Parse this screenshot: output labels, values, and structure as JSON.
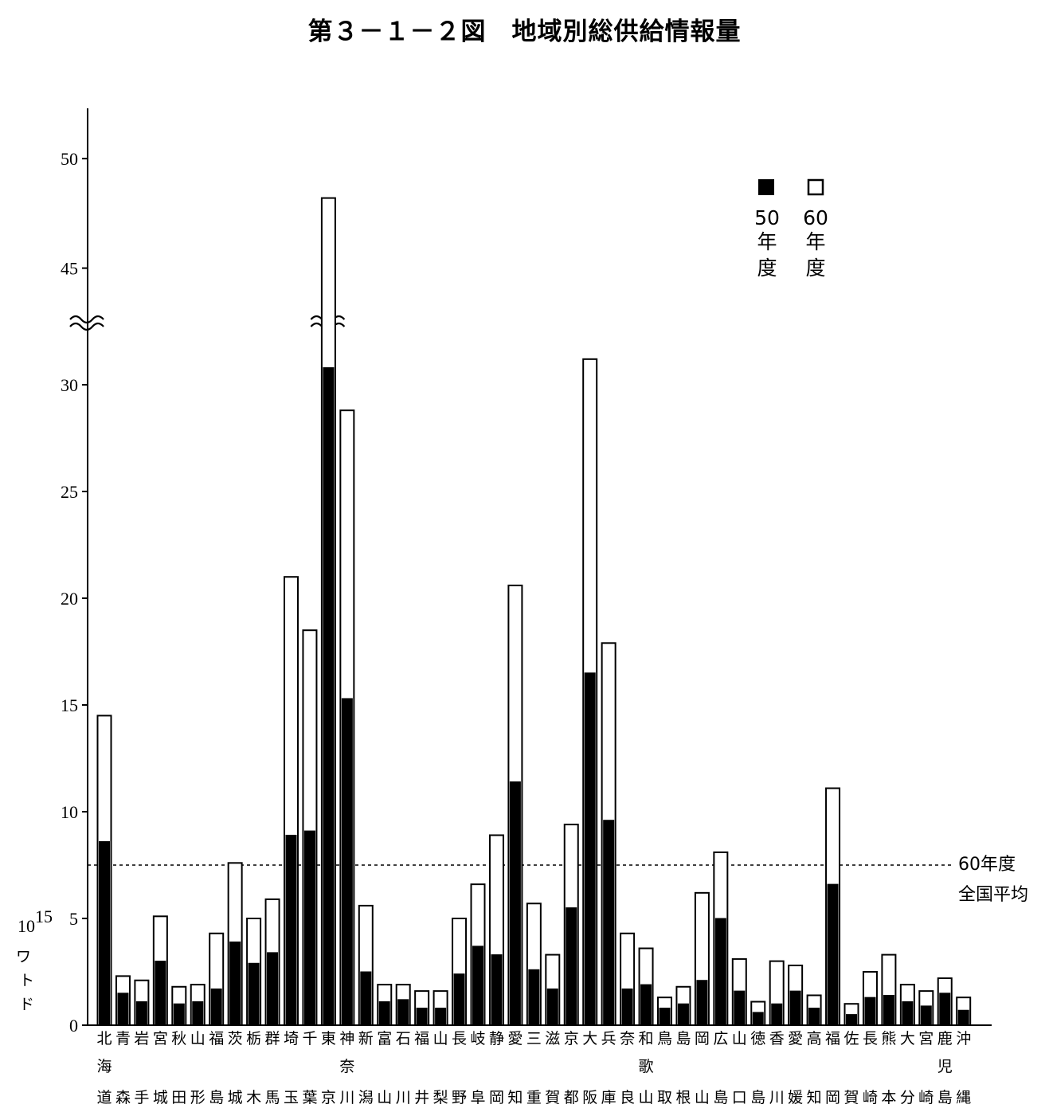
{
  "title": "第３－１－２図　地域別総供給情報量",
  "chart_data": {
    "type": "bar",
    "stacked_overlay": true,
    "unit_label": [
      "10",
      "15",
      "ワ",
      "ト",
      "ド"
    ],
    "y_ticks": [
      "0",
      "5",
      "10",
      "15",
      "20",
      "25",
      "30",
      "45",
      "50"
    ],
    "axis_break": {
      "from": 33,
      "to": 43
    },
    "ylim": [
      0,
      52
    ],
    "categories": [
      [
        "北",
        "海",
        "道"
      ],
      [
        "青",
        "",
        "森"
      ],
      [
        "岩",
        "",
        "手"
      ],
      [
        "宮",
        "",
        "城"
      ],
      [
        "秋",
        "",
        "田"
      ],
      [
        "山",
        "",
        "形"
      ],
      [
        "福",
        "",
        "島"
      ],
      [
        "茨",
        "",
        "城"
      ],
      [
        "栃",
        "",
        "木"
      ],
      [
        "群",
        "",
        "馬"
      ],
      [
        "埼",
        "",
        "玉"
      ],
      [
        "千",
        "",
        "葉"
      ],
      [
        "東",
        "",
        "京"
      ],
      [
        "神",
        "奈",
        "川"
      ],
      [
        "新",
        "",
        "潟"
      ],
      [
        "富",
        "",
        "山"
      ],
      [
        "石",
        "",
        "川"
      ],
      [
        "福",
        "",
        "井"
      ],
      [
        "山",
        "",
        "梨"
      ],
      [
        "長",
        "",
        "野"
      ],
      [
        "岐",
        "",
        "阜"
      ],
      [
        "静",
        "",
        "岡"
      ],
      [
        "愛",
        "",
        "知"
      ],
      [
        "三",
        "",
        "重"
      ],
      [
        "滋",
        "",
        "賀"
      ],
      [
        "京",
        "",
        "都"
      ],
      [
        "大",
        "",
        "阪"
      ],
      [
        "兵",
        "",
        "庫"
      ],
      [
        "奈",
        "",
        "良"
      ],
      [
        "和",
        "歌",
        "山"
      ],
      [
        "鳥",
        "",
        "取"
      ],
      [
        "島",
        "",
        "根"
      ],
      [
        "岡",
        "",
        "山"
      ],
      [
        "広",
        "",
        "島"
      ],
      [
        "山",
        "",
        "口"
      ],
      [
        "徳",
        "",
        "島"
      ],
      [
        "香",
        "",
        "川"
      ],
      [
        "愛",
        "",
        "媛"
      ],
      [
        "高",
        "",
        "知"
      ],
      [
        "福",
        "",
        "岡"
      ],
      [
        "佐",
        "",
        "賀"
      ],
      [
        "長",
        "",
        "崎"
      ],
      [
        "熊",
        "",
        "本"
      ],
      [
        "大",
        "",
        "分"
      ],
      [
        "宮",
        "",
        "崎"
      ],
      [
        "鹿",
        "児",
        "島"
      ],
      [
        "沖",
        "",
        "縄"
      ]
    ],
    "series": [
      {
        "name": "50年度",
        "color": "#000000",
        "values": [
          8.6,
          1.5,
          1.1,
          3.0,
          1.0,
          1.1,
          1.7,
          3.9,
          2.9,
          3.4,
          8.9,
          9.1,
          30.8,
          15.3,
          2.5,
          1.1,
          1.2,
          0.8,
          0.8,
          2.4,
          3.7,
          3.3,
          11.4,
          2.6,
          1.7,
          5.5,
          16.5,
          9.6,
          1.7,
          1.9,
          0.8,
          1.0,
          2.1,
          5.0,
          1.6,
          0.6,
          1.0,
          1.6,
          0.8,
          6.6,
          0.5,
          1.3,
          1.4,
          1.1,
          0.9,
          1.5,
          0.7
        ]
      },
      {
        "name": "60年度",
        "color": "#ffffff",
        "values": [
          14.5,
          2.3,
          2.1,
          5.1,
          1.8,
          1.9,
          4.3,
          7.6,
          5.0,
          5.9,
          21.0,
          18.5,
          48.2,
          28.8,
          5.6,
          1.9,
          1.9,
          1.6,
          1.6,
          5.0,
          6.6,
          8.9,
          20.6,
          5.7,
          3.3,
          9.4,
          31.2,
          17.9,
          4.3,
          3.6,
          1.3,
          1.8,
          6.2,
          8.1,
          3.1,
          1.1,
          3.0,
          2.8,
          1.4,
          11.1,
          1.0,
          2.5,
          3.3,
          1.9,
          1.6,
          2.2,
          1.3
        ]
      }
    ],
    "reference_line": {
      "value": 7.5,
      "label_lines": [
        "60年度",
        "全国平均"
      ]
    },
    "legend_labels": [
      [
        "50",
        "年",
        "度"
      ],
      [
        "60",
        "年",
        "度"
      ]
    ],
    "legend": "top-right",
    "grid": false
  }
}
